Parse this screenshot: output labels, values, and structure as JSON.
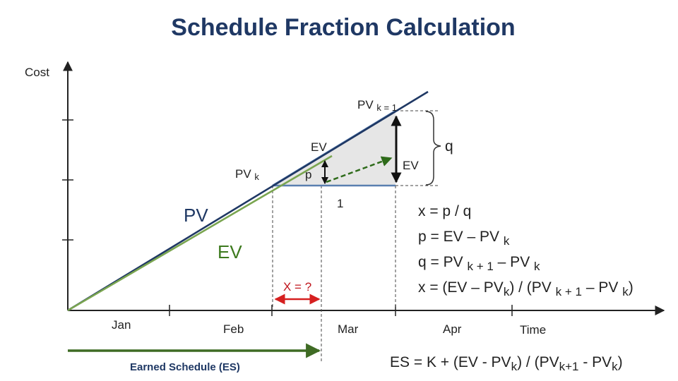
{
  "title": "Schedule Fraction Calculation",
  "axes": {
    "y_label": "Cost",
    "x_label": "Time",
    "months": [
      "Jan",
      "Feb",
      "Mar",
      "Apr"
    ]
  },
  "labels": {
    "pv_line": "PV",
    "ev_line": "EV",
    "pv_k": "PV",
    "pv_k_sub": "k",
    "pv_k1": "PV",
    "pv_k1_sub": "k = 1",
    "ev_point": "EV",
    "ev_segment": "EV",
    "p": "p",
    "q": "q",
    "one": "1",
    "x_unknown": "X = ?",
    "earned_schedule": "Earned Schedule (ES)"
  },
  "formulas": {
    "f1": "x = p / q",
    "f2_main": "p = EV – PV",
    "f2_sub": "k",
    "f3_a": "q = PV",
    "f3_sub1": "k + 1",
    "f3_b": "– PV",
    "f3_sub2": "k",
    "f4_a": "x = (EV – PV",
    "f4_sub1": "k",
    "f4_b": ") / (PV",
    "f4_sub2": "k + 1",
    "f4_c": "– PV",
    "f4_sub3": "k",
    "f4_d": ")",
    "es_a": "ES = K + (EV - PV",
    "es_sub1": "k",
    "es_b": ") / (PV",
    "es_sub2": "k+1",
    "es_c": " - PV",
    "es_sub3": "k",
    "es_d": ")"
  },
  "colors": {
    "title": "#1f3864",
    "pv_line": "#1f3864",
    "ev_line": "#7aa550",
    "ev_text": "#3d7a1e",
    "dashed_ev": "#2e6b1a",
    "triangle_fill": "#e6e6e6",
    "x_arrow": "#d62020",
    "es_arrow": "#3f6b24"
  }
}
